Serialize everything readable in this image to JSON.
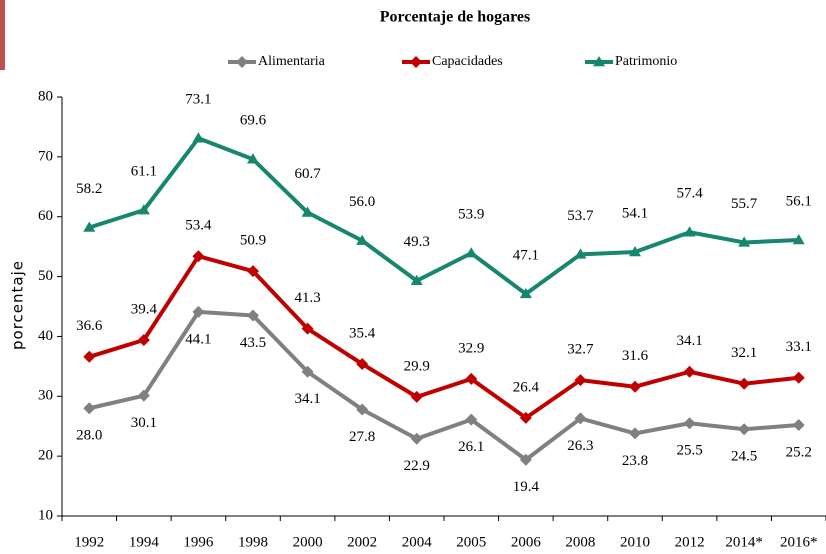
{
  "chart_data": {
    "type": "line",
    "title": "Porcentaje de hogares",
    "y_label": "porcentaje",
    "categories": [
      "1992",
      "1994",
      "1996",
      "1998",
      "2000",
      "2002",
      "2004",
      "2005",
      "2006",
      "2008",
      "2010",
      "2012",
      "2014*",
      "2016*"
    ],
    "series": [
      {
        "name": "Alimentaria",
        "color": "#808080",
        "marker": "diamond",
        "values": [
          28.0,
          30.1,
          44.1,
          43.5,
          34.1,
          27.8,
          22.9,
          26.1,
          19.4,
          26.3,
          23.8,
          25.5,
          24.5,
          25.2
        ],
        "value_labels": [
          "28.0",
          "30.1",
          "44.1",
          "43.5",
          "34.1",
          "27.8",
          "22.9",
          "26.1",
          "19.4",
          "26.3",
          "23.8",
          "25.5",
          "24.5",
          "25.2"
        ]
      },
      {
        "name": "Capacidades",
        "color": "#c00000",
        "marker": "diamond",
        "values": [
          36.6,
          39.4,
          53.4,
          50.9,
          41.3,
          35.4,
          29.9,
          32.9,
          26.4,
          32.7,
          31.6,
          34.1,
          32.1,
          33.1
        ],
        "value_labels": [
          "36.6",
          "39.4",
          "53.4",
          "50.9",
          "41.3",
          "35.4",
          "29.9",
          "32.9",
          "26.4",
          "32.7",
          "31.6",
          "34.1",
          "32.1",
          "33.1"
        ]
      },
      {
        "name": "Patrimonio",
        "color": "#16866e",
        "marker": "triangle",
        "values": [
          58.2,
          61.1,
          73.1,
          69.6,
          60.7,
          56.0,
          49.3,
          53.9,
          47.1,
          53.7,
          54.1,
          57.4,
          55.7,
          56.1
        ],
        "value_labels": [
          "58.2",
          "61.1",
          "73.1",
          "69.6",
          "60.7",
          "56.0",
          "49.3",
          "53.9",
          "47.1",
          "53.7",
          "54.1",
          "57.4",
          "55.7",
          "56.1"
        ]
      }
    ],
    "ylim": [
      10,
      80
    ],
    "yticks": [
      10,
      20,
      30,
      40,
      50,
      60,
      70,
      80
    ],
    "grid": false
  }
}
